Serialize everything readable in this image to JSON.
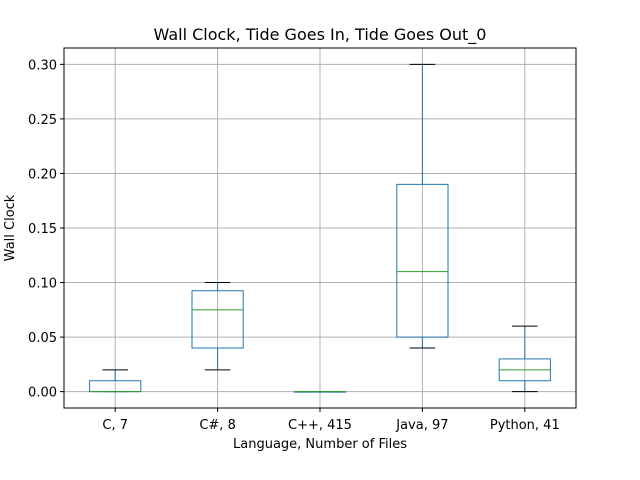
{
  "chart_data": {
    "type": "box",
    "title": "Wall Clock, Tide Goes In, Tide Goes Out_0",
    "xlabel": "Language, Number of Files",
    "ylabel": "Wall Clock",
    "ylim": [
      -0.015,
      0.315
    ],
    "yticks": [
      0.0,
      0.05,
      0.1,
      0.15,
      0.2,
      0.25,
      0.3
    ],
    "ytick_labels": [
      "0.00",
      "0.05",
      "0.10",
      "0.15",
      "0.20",
      "0.25",
      "0.30"
    ],
    "grid": true,
    "categories": [
      "C, 7",
      "C#, 8",
      "C++, 415",
      "Java, 97",
      "Python, 41"
    ],
    "boxes": [
      {
        "whisker_low": 0.0,
        "q1": 0.0,
        "median": 0.0,
        "q3": 0.01,
        "whisker_high": 0.02
      },
      {
        "whisker_low": 0.02,
        "q1": 0.04,
        "median": 0.075,
        "q3": 0.0925,
        "whisker_high": 0.1
      },
      {
        "whisker_low": 0.0,
        "q1": 0.0,
        "median": 0.0,
        "q3": 0.0,
        "whisker_high": 0.0
      },
      {
        "whisker_low": 0.04,
        "q1": 0.05,
        "median": 0.11,
        "q3": 0.19,
        "whisker_high": 0.3
      },
      {
        "whisker_low": 0.0,
        "q1": 0.01,
        "median": 0.02,
        "q3": 0.03,
        "whisker_high": 0.06
      }
    ],
    "colors": {
      "box": "#1f77b4",
      "median": "#2ca02c",
      "cap": "#000000",
      "grid": "#b0b0b0",
      "axes": "#000000"
    }
  }
}
